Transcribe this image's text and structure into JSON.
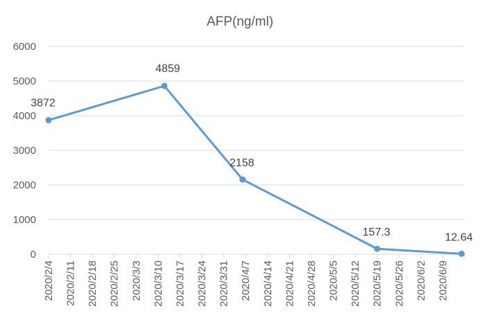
{
  "chart_data": {
    "type": "line",
    "title": "AFP(ng/ml)",
    "xlabel": "",
    "ylabel": "",
    "x_ticks": [
      "2020/2/4",
      "2020/2/11",
      "2020/2/18",
      "2020/2/25",
      "2020/3/3",
      "2020/3/10",
      "2020/3/17",
      "2020/3/24",
      "2020/3/31",
      "2020/4/7",
      "2020/4/14",
      "2020/4/21",
      "2020/4/28",
      "2020/5/5",
      "2020/5/12",
      "2020/5/19",
      "2020/5/26",
      "2020/6/2",
      "2020/6/9"
    ],
    "y_ticks": [
      "0",
      "1000",
      "2000",
      "3000",
      "4000",
      "5000",
      "6000"
    ],
    "ylim": [
      0,
      6000
    ],
    "xlim": [
      "2020/2/4",
      "2020/6/16"
    ],
    "grid": true,
    "legend": "none",
    "series": [
      {
        "color": "#5b9bd5",
        "points": [
          {
            "x": "2020/2/4",
            "y": 3872,
            "label": "3872"
          },
          {
            "x": "2020/3/12",
            "y": 4859,
            "label": "4859"
          },
          {
            "x": "2020/4/6",
            "y": 2158,
            "label": "2158"
          },
          {
            "x": "2020/5/19",
            "y": 157.3,
            "label": "157.3"
          },
          {
            "x": "2020/6/15",
            "y": 12.64,
            "label": "12.64"
          }
        ]
      }
    ]
  }
}
